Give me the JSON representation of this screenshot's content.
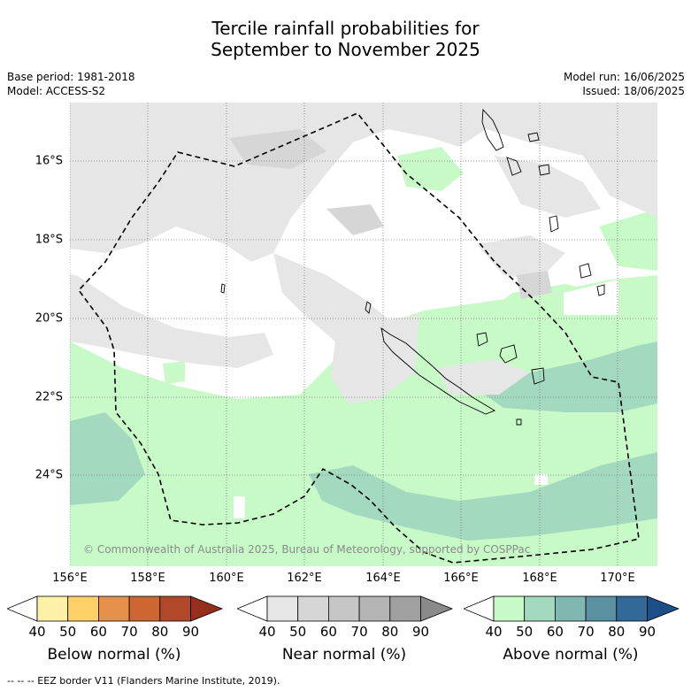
{
  "title_line1": "Tercile rainfall probabilities for",
  "title_line2": "September to November 2025",
  "base_period": "Base period: 1981-2018",
  "model": "Model: ACCESS-S2",
  "model_run": "Model run: 16/06/2025",
  "issued": "Issued: 18/06/2025",
  "lat_labels": [
    "16°S",
    "18°S",
    "20°S",
    "22°S",
    "24°S"
  ],
  "lon_labels": [
    "156°E",
    "158°E",
    "160°E",
    "162°E",
    "164°E",
    "166°E",
    "168°E",
    "170°E"
  ],
  "copyright": "© Commonwealth of Australia 2025, Bureau of Meteorology, supported by COSPPac",
  "colorbars": [
    {
      "title": "Below normal (%)",
      "ticks": [
        "40",
        "50",
        "60",
        "70",
        "80",
        "90"
      ],
      "colors": [
        "#ffffff",
        "#fff0a8",
        "#fdd166",
        "#e5914a",
        "#cd6633",
        "#b04829",
        "#962e1d"
      ]
    },
    {
      "title": "Near normal (%)",
      "ticks": [
        "40",
        "50",
        "60",
        "70",
        "80",
        "90"
      ],
      "colors": [
        "#ffffff",
        "#e6e6e6",
        "#d6d6d6",
        "#c6c6c6",
        "#b4b4b4",
        "#a0a0a0",
        "#8a8a8a"
      ]
    },
    {
      "title": "Above normal (%)",
      "ticks": [
        "40",
        "50",
        "60",
        "70",
        "80",
        "90"
      ],
      "colors": [
        "#ffffff",
        "#c8fac8",
        "#a2d9bf",
        "#80b7b1",
        "#5a91a1",
        "#336998",
        "#1b4f85"
      ]
    }
  ],
  "footnote": "-- -- -- EEZ border V11 (Flanders Marine Institute, 2019)."
}
